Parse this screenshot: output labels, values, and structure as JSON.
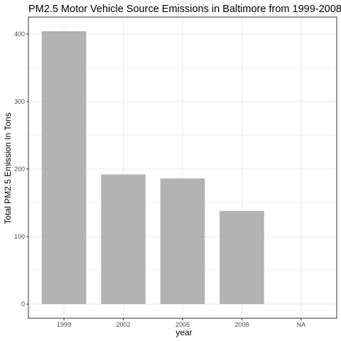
{
  "chart_data": {
    "type": "bar",
    "title": "PM2.5 Motor Vehicle Source Emissions in Baltimore from 1999-2008",
    "xlabel": "year",
    "ylabel": "Total PM2.5 Emission In Tons",
    "categories": [
      "1999",
      "2002",
      "2005",
      "2008",
      "NA"
    ],
    "values": [
      404,
      192,
      186,
      138,
      null
    ],
    "yticks": [
      0,
      100,
      200,
      300,
      400
    ],
    "ylim": [
      -21,
      425
    ],
    "grid": true,
    "bar_color": "#b3b3b3",
    "grid_color": "#ebebeb",
    "panel_border_color": "#333333"
  }
}
